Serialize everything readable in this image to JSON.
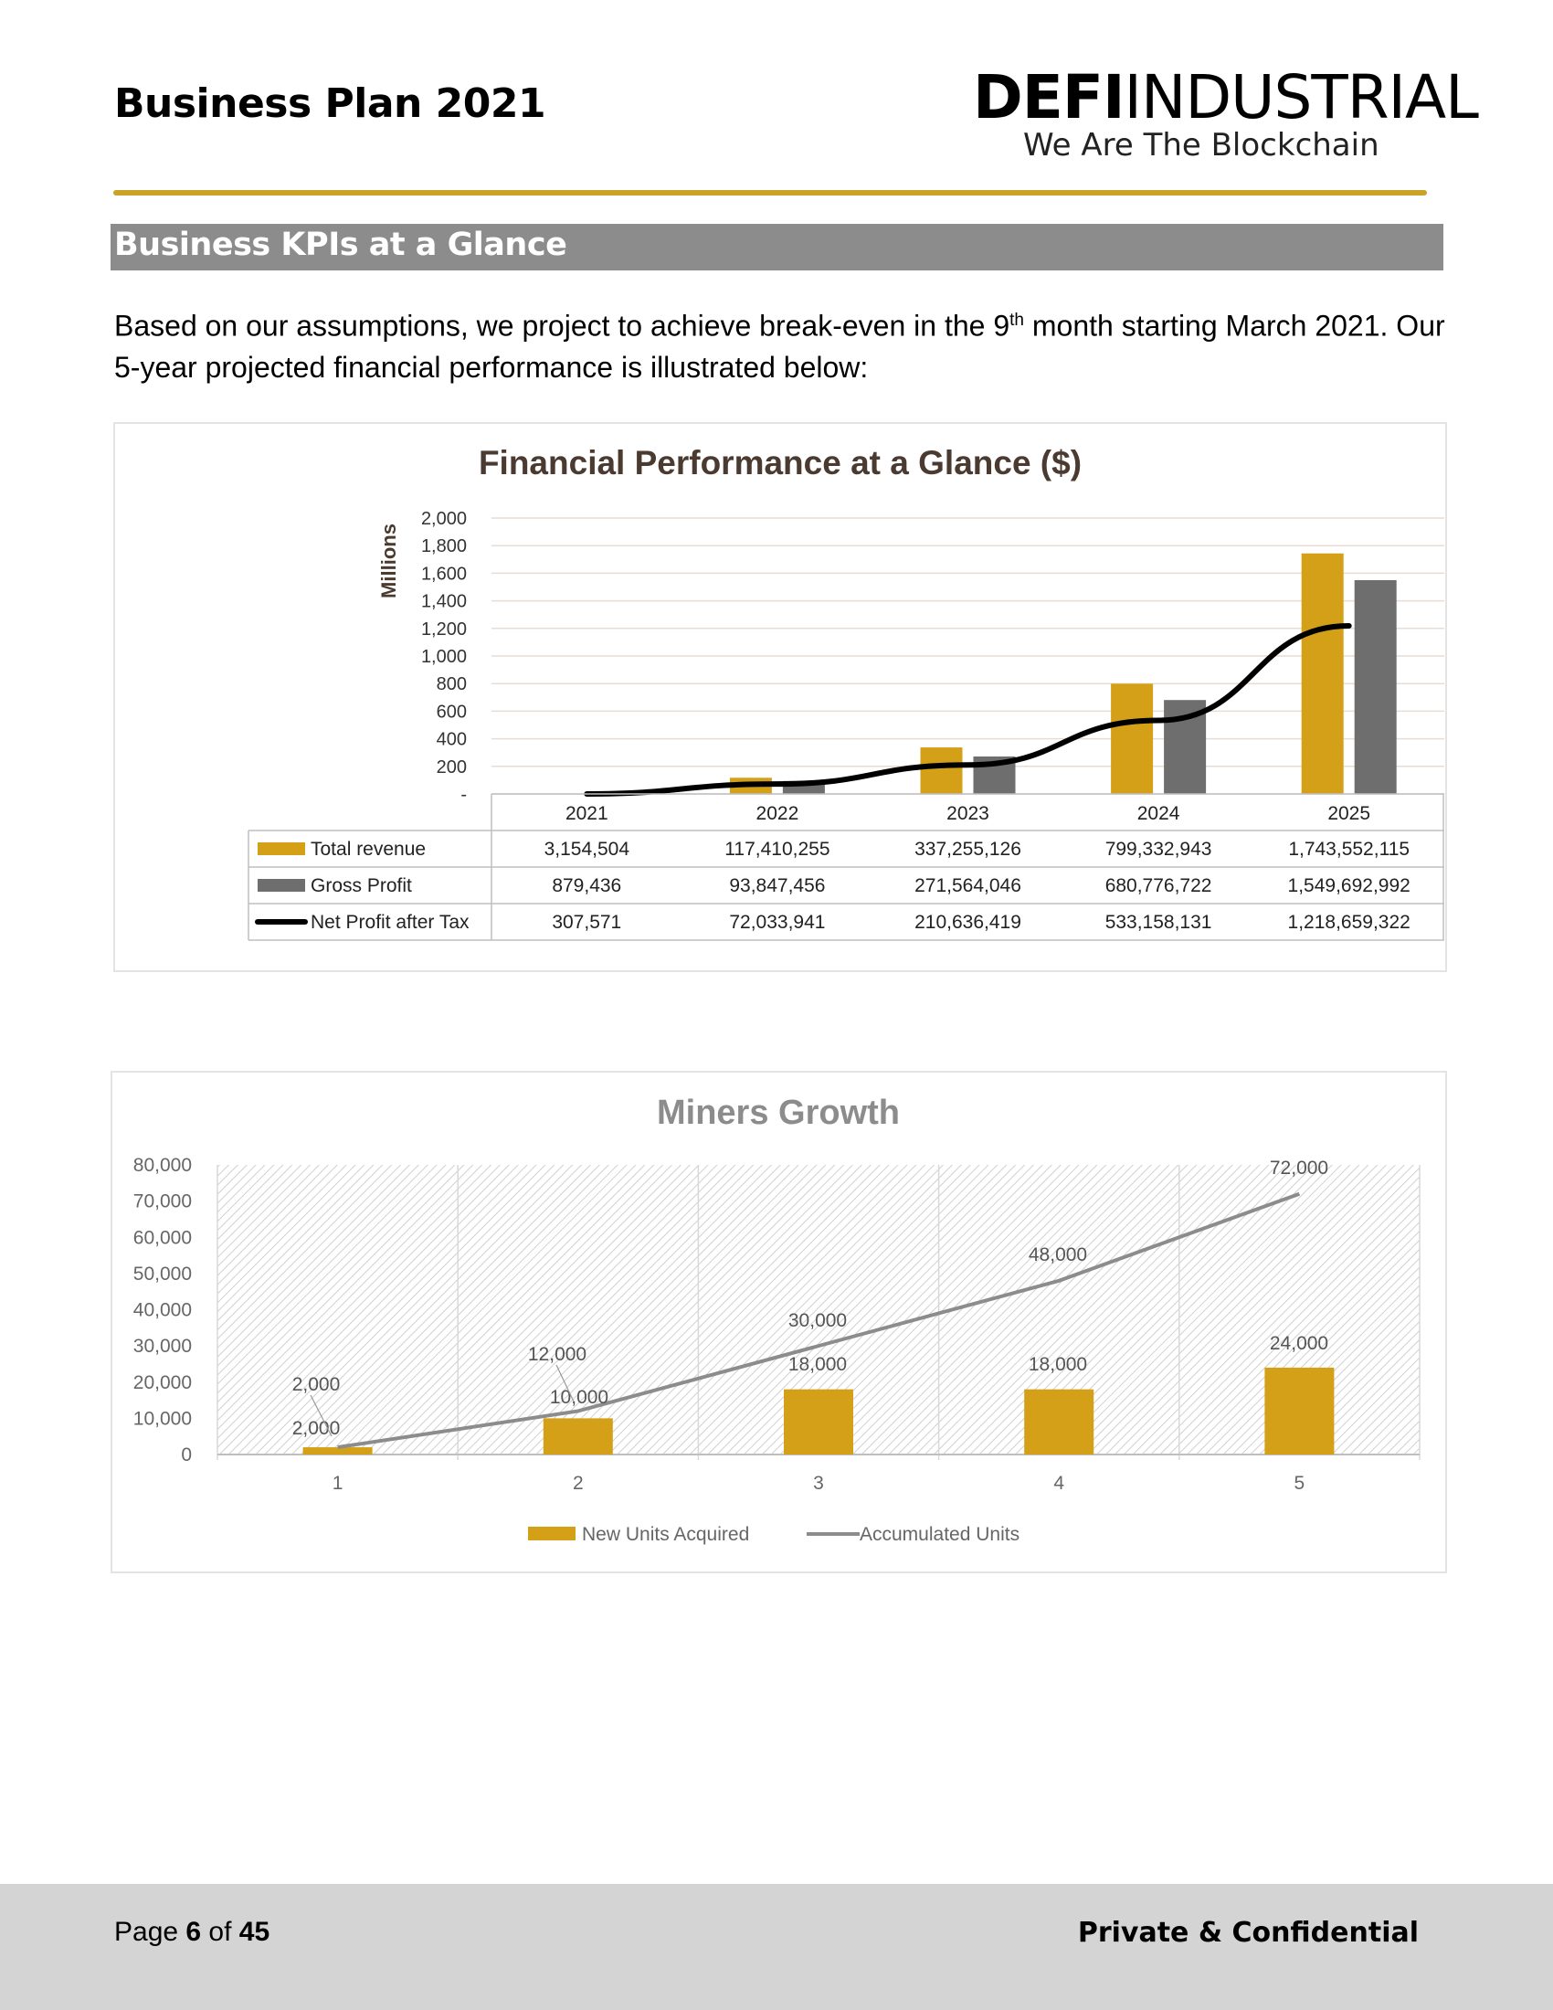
{
  "header": {
    "doc_title": "Business Plan 2021",
    "logo_bold": "DEFI",
    "logo_light": "INDUSTRIAL",
    "logo_tagline": "We Are The Blockchain"
  },
  "section": {
    "title": "Business KPIs at a Glance"
  },
  "intro": {
    "part1": "Based on our assumptions, we project to achieve break-even in the 9",
    "sup": "th",
    "part2": " month starting March 2021. Our 5-year projected financial performance is illustrated below:"
  },
  "colors": {
    "gold": "#d4a017",
    "gray_bar": "#6e6e6e",
    "line_black": "#000000",
    "line_gray": "#8c8c8c",
    "title_brown": "#4a3a30"
  },
  "chart_data": [
    {
      "type": "bar",
      "title": "Financial Performance at a Glance ($)",
      "ylabel": "Millions",
      "ylim": [
        0,
        2000
      ],
      "yticks": [
        "-",
        "200",
        "400",
        "600",
        "800",
        "1,000",
        "1,200",
        "1,400",
        "1,600",
        "1,800",
        "2,000"
      ],
      "categories": [
        "2021",
        "2022",
        "2023",
        "2024",
        "2025"
      ],
      "series": [
        {
          "name": "Total revenue",
          "kind": "bar",
          "color": "#d4a017",
          "values": [
            3.154504,
            117.410255,
            337.255126,
            799.332943,
            1743.552115
          ],
          "labels": [
            "3,154,504",
            "117,410,255",
            "337,255,126",
            "799,332,943",
            "1,743,552,115"
          ]
        },
        {
          "name": "Gross Profit",
          "kind": "bar",
          "color": "#6e6e6e",
          "values": [
            0.879436,
            93.847456,
            271.564046,
            680.776722,
            1549.692992
          ],
          "labels": [
            "879,436",
            "93,847,456",
            "271,564,046",
            "680,776,722",
            "1,549,692,992"
          ]
        },
        {
          "name": "Net Profit after Tax",
          "kind": "line",
          "color": "#000000",
          "values": [
            0.307571,
            72.033941,
            210.636419,
            533.158131,
            1218.659322
          ],
          "labels": [
            "307,571",
            "72,033,941",
            "210,636,419",
            "533,158,131",
            "1,218,659,322"
          ]
        }
      ],
      "data_table": true,
      "grid": true
    },
    {
      "type": "bar",
      "title": "Miners Growth",
      "ylim": [
        0,
        80000
      ],
      "yticks": [
        "0",
        "10,000",
        "20,000",
        "30,000",
        "40,000",
        "50,000",
        "60,000",
        "70,000",
        "80,000"
      ],
      "categories": [
        "1",
        "2",
        "3",
        "4",
        "5"
      ],
      "series": [
        {
          "name": "New Units Acquired",
          "kind": "bar",
          "color": "#d4a017",
          "values": [
            2000,
            10000,
            18000,
            18000,
            24000
          ],
          "labels": [
            "2,000",
            "10,000",
            "18,000",
            "18,000",
            "24,000"
          ]
        },
        {
          "name": "Accumulated Units",
          "kind": "line",
          "color": "#8c8c8c",
          "values": [
            2000,
            12000,
            30000,
            48000,
            72000
          ],
          "labels": [
            "2,000",
            "12,000",
            "30,000",
            "48,000",
            "72,000"
          ]
        }
      ],
      "legend": "bottom",
      "grid": true
    }
  ],
  "footer": {
    "page_prefix": "Page ",
    "page_num": "6",
    "page_of": " of ",
    "page_total": "45",
    "confidential": "Private & Confidential"
  }
}
